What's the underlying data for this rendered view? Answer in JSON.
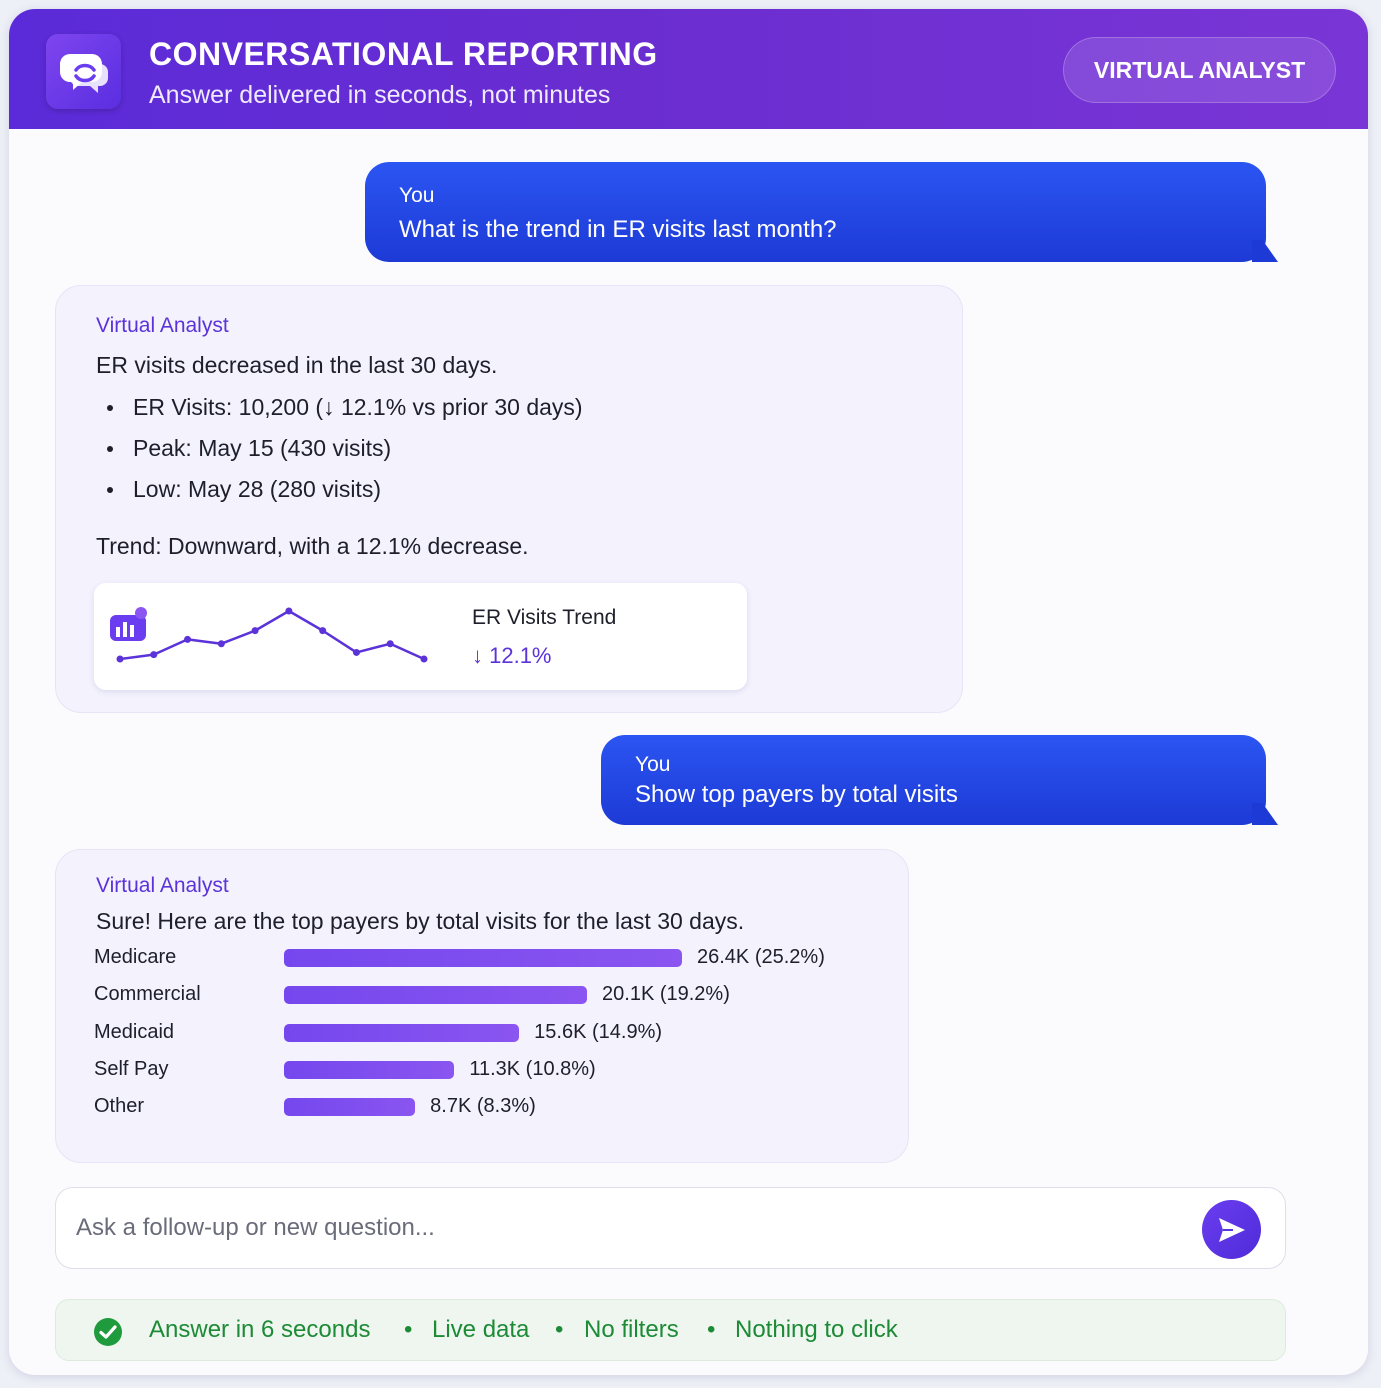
{
  "header": {
    "title": "CONVERSATIONAL REPORTING",
    "subtitle": "Answer delivered in seconds, not minutes",
    "badge": "VIRTUAL ANALYST",
    "logo_icon": "chat-bubbles-icon"
  },
  "conversation": [
    {
      "sender": "You",
      "text": "What is the trend in ER visits last month?"
    },
    {
      "sender": "Virtual Analyst",
      "intro": "ER visits decreased in the last 30 days.",
      "bullets": [
        "ER Visits: 10,200 (↓ 12.1% vs prior 30 days)",
        "Peak: May 15 (430 visits)",
        "Low: May 28 (280 visits)"
      ],
      "summary": "Trend: Downward, with a 12.1% decrease.",
      "trend_card": {
        "title": "ER Visits Trend",
        "delta": "↓ 12.1%",
        "icon": "chart-badge-icon",
        "sparkline": [
          300,
          310,
          345,
          335,
          365,
          410,
          365,
          315,
          335,
          300
        ]
      }
    },
    {
      "sender": "You",
      "text": "Show top payers by total visits"
    },
    {
      "sender": "Virtual Analyst",
      "intro": "Sure! Here are the top payers by total visits for the last 30 days.",
      "payers": [
        {
          "name": "Medicare",
          "value": "26.4K (25.2%)",
          "visits_k": 26.4
        },
        {
          "name": "Commercial",
          "value": "20.1K (19.2%)",
          "visits_k": 20.1
        },
        {
          "name": "Medicaid",
          "value": "15.6K (14.9%)",
          "visits_k": 15.6
        },
        {
          "name": "Self Pay",
          "value": "11.3K (10.8%)",
          "visits_k": 11.3
        },
        {
          "name": "Other",
          "value": "8.7K (8.3%)",
          "visits_k": 8.7
        }
      ]
    }
  ],
  "input": {
    "placeholder": "Ask a follow-up or new question...",
    "value": "",
    "send_icon": "send-icon"
  },
  "status": {
    "icon": "check-circle-icon",
    "items": [
      "Answer in 6 seconds",
      "Live data",
      "No filters",
      "Nothing to click"
    ],
    "separator": "•"
  },
  "colors": {
    "header_start": "#5b2bd9",
    "header_end": "#7a35d6",
    "user_bubble": "#1d3ad6",
    "accent": "#5b33d8",
    "bar": "#7547ee",
    "status_green": "#1d8a36"
  }
}
